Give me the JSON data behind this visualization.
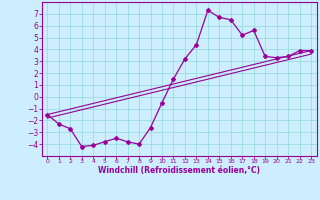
{
  "xlabel": "Windchill (Refroidissement éolien,°C)",
  "bg_color": "#cceeff",
  "grid_color": "#99dddd",
  "line_color": "#990099",
  "x_ticks": [
    0,
    1,
    2,
    3,
    4,
    5,
    6,
    7,
    8,
    9,
    10,
    11,
    12,
    13,
    14,
    15,
    16,
    17,
    18,
    19,
    20,
    21,
    22,
    23
  ],
  "y_ticks": [
    -4,
    -3,
    -2,
    -1,
    0,
    1,
    2,
    3,
    4,
    5,
    6,
    7
  ],
  "xlim": [
    -0.5,
    23.5
  ],
  "ylim": [
    -5.0,
    8.0
  ],
  "series1_x": [
    0,
    1,
    2,
    3,
    4,
    5,
    6,
    7,
    8,
    9,
    10,
    11,
    12,
    13,
    14,
    15,
    16,
    17,
    18,
    19,
    20,
    21,
    22,
    23
  ],
  "series1_y": [
    -1.5,
    -2.3,
    -2.7,
    -4.2,
    -4.1,
    -3.8,
    -3.5,
    -3.8,
    -4.0,
    -2.6,
    -0.5,
    1.5,
    3.2,
    4.4,
    7.3,
    6.7,
    6.5,
    5.2,
    5.6,
    3.4,
    3.3,
    3.4,
    3.9,
    3.9
  ],
  "series2_x": [
    0,
    23
  ],
  "series2_y": [
    -1.5,
    3.9
  ],
  "series3_x": [
    0,
    23
  ],
  "series3_y": [
    -1.8,
    3.6
  ]
}
